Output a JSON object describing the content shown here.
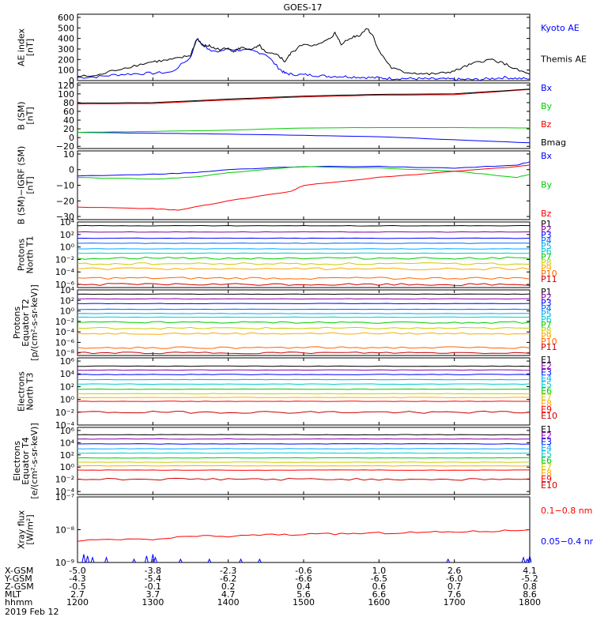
{
  "title": "GOES-17",
  "chart_data": [
    {
      "type": "line",
      "id": "ae",
      "ylabel": [
        "AE index",
        "[nT]"
      ],
      "yticks": [
        "600",
        "500",
        "400",
        "300",
        "200",
        "100",
        "0"
      ],
      "ylim": [
        0,
        630
      ],
      "series": [
        {
          "name": "Kyoto AE",
          "color": "#0000ff",
          "x": [
            1200,
            1215,
            1230,
            1245,
            1300,
            1315,
            1330,
            1335,
            1340,
            1345,
            1350,
            1400,
            1410,
            1420,
            1430,
            1440,
            1445,
            1450,
            1500,
            1510,
            1520,
            1530,
            1540,
            1550,
            1600,
            1610,
            1620,
            1630,
            1640,
            1650,
            1700,
            1710,
            1720,
            1730,
            1740,
            1750,
            1800
          ],
          "y": [
            30,
            35,
            55,
            65,
            70,
            80,
            220,
            400,
            330,
            300,
            270,
            300,
            290,
            280,
            250,
            120,
            70,
            60,
            55,
            50,
            40,
            40,
            35,
            30,
            25,
            20,
            20,
            18,
            15,
            15,
            12,
            10,
            10,
            20,
            30,
            20,
            15
          ]
        },
        {
          "name": "Themis AE",
          "color": "#000000",
          "x": [
            1200,
            1215,
            1230,
            1245,
            1300,
            1310,
            1320,
            1330,
            1335,
            1340,
            1345,
            1350,
            1400,
            1405,
            1410,
            1420,
            1425,
            1430,
            1440,
            1445,
            1450,
            1500,
            1510,
            1520,
            1525,
            1530,
            1540,
            1545,
            1550,
            1555,
            1600,
            1610,
            1620,
            1630,
            1640,
            1650,
            1700,
            1710,
            1720,
            1730,
            1740,
            1750,
            1800
          ],
          "y": [
            40,
            45,
            100,
            140,
            180,
            190,
            210,
            240,
            400,
            330,
            330,
            300,
            300,
            280,
            310,
            300,
            330,
            260,
            240,
            180,
            260,
            350,
            330,
            390,
            450,
            350,
            420,
            430,
            500,
            430,
            280,
            120,
            80,
            70,
            60,
            70,
            90,
            140,
            180,
            200,
            160,
            100,
            60
          ]
        }
      ]
    },
    {
      "type": "line",
      "id": "bsm",
      "ylabel": [
        "B (SM)",
        "[nT]"
      ],
      "yticks": [
        "120",
        "100",
        "80",
        "60",
        "40",
        "20",
        "0",
        "−20"
      ],
      "ylim": [
        -25,
        125
      ],
      "series": [
        {
          "name": "Bx",
          "color": "#0000ff",
          "x": [
            1200,
            1300,
            1400,
            1500,
            1600,
            1700,
            1800
          ],
          "y": [
            12,
            10,
            8,
            5,
            2,
            -5,
            -12
          ]
        },
        {
          "name": "By",
          "color": "#00cc00",
          "x": [
            1200,
            1300,
            1400,
            1500,
            1600,
            1700,
            1800
          ],
          "y": [
            12,
            14,
            17,
            22,
            23,
            23,
            22
          ]
        },
        {
          "name": "Bz",
          "color": "#ff0000",
          "x": [
            1200,
            1300,
            1400,
            1500,
            1600,
            1700,
            1800
          ],
          "y": [
            77,
            78,
            86,
            93,
            97,
            98,
            110
          ]
        },
        {
          "name": "Bmag",
          "color": "#000000",
          "x": [
            1200,
            1300,
            1400,
            1500,
            1600,
            1700,
            1800
          ],
          "y": [
            79,
            80,
            88,
            95,
            99,
            100,
            111
          ]
        }
      ]
    },
    {
      "type": "line",
      "id": "digrf",
      "ylabel": [
        "B (SM)−IGRF (SM)",
        "[nT]"
      ],
      "yticks": [
        "10",
        "0",
        "−10",
        "−20",
        "−30"
      ],
      "ylim": [
        -32,
        12
      ],
      "series": [
        {
          "name": "Bx",
          "color": "#0000ff",
          "x": [
            1200,
            1300,
            1330,
            1400,
            1500,
            1600,
            1700,
            1750,
            1800
          ],
          "y": [
            -4,
            -3,
            -2,
            0,
            2,
            2,
            1,
            3,
            5
          ]
        },
        {
          "name": "By",
          "color": "#00cc00",
          "x": [
            1200,
            1300,
            1330,
            1400,
            1500,
            1600,
            1700,
            1750,
            1800
          ],
          "y": [
            -5,
            -6,
            -5,
            -2,
            2,
            1,
            -1,
            -5,
            -3
          ]
        },
        {
          "name": "Bz",
          "color": "#ff0000",
          "x": [
            1200,
            1300,
            1320,
            1400,
            1450,
            1500,
            1600,
            1700,
            1750,
            1800
          ],
          "y": [
            -24,
            -25,
            -26,
            -20,
            -14,
            -10,
            -5,
            -1,
            2,
            3
          ]
        }
      ]
    },
    {
      "type": "line",
      "id": "p_north",
      "ylabel": [
        "Protons",
        "North T1"
      ],
      "yticks": [
        "10⁴",
        "10²",
        "10⁰",
        "10⁻²",
        "10⁻⁴",
        "10⁻⁶"
      ],
      "ylim_log": [
        -6.5,
        4
      ],
      "series": [
        {
          "name": "P1",
          "color": "#000000",
          "level": 3.4
        },
        {
          "name": "P2",
          "color": "#8800aa",
          "level": 2.4
        },
        {
          "name": "P3",
          "color": "#0000ff",
          "level": 1.4
        },
        {
          "name": "P4",
          "color": "#0066ff",
          "level": 0.6
        },
        {
          "name": "P5",
          "color": "#00aaff",
          "level": -0.3
        },
        {
          "name": "P6",
          "color": "#00cccc",
          "level": -1.0
        },
        {
          "name": "P7",
          "color": "#00cc00",
          "level": -1.8
        },
        {
          "name": "P8",
          "color": "#cccc00",
          "level": -2.7
        },
        {
          "name": "P9",
          "color": "#ffaa00",
          "level": -3.5
        },
        {
          "name": "P10",
          "color": "#ff6600",
          "level": -5.0
        },
        {
          "name": "P11",
          "color": "#cc0000",
          "level": -6.0
        }
      ]
    },
    {
      "type": "line",
      "id": "p_eq",
      "ylabel": [
        "Protons",
        "Equator T2",
        "[p/(cm²-s-sr-keV)]"
      ],
      "yticks": [
        "10⁴",
        "10²",
        "10⁰",
        "10⁻²",
        "10⁻⁴",
        "10⁻⁶",
        "10⁻⁸"
      ],
      "ylim_log": [
        -8.5,
        4
      ],
      "series": [
        {
          "name": "P1",
          "color": "#000000",
          "level": 3.2
        },
        {
          "name": "P2",
          "color": "#8800aa",
          "level": 2.3
        },
        {
          "name": "P3",
          "color": "#0000ff",
          "level": 1.4
        },
        {
          "name": "P4",
          "color": "#0066ff",
          "level": 0.3
        },
        {
          "name": "P5",
          "color": "#00aaff",
          "level": -0.5
        },
        {
          "name": "P6",
          "color": "#00cccc",
          "level": -1.2
        },
        {
          "name": "P7",
          "color": "#00cc00",
          "level": -2.2
        },
        {
          "name": "P8",
          "color": "#cccc00",
          "level": -3.3
        },
        {
          "name": "P9",
          "color": "#ffaa00",
          "level": -4.3
        },
        {
          "name": "P10",
          "color": "#ff6600",
          "level": -7.0
        },
        {
          "name": "P11",
          "color": "#cc0000",
          "level": -8.0
        }
      ]
    },
    {
      "type": "line",
      "id": "e_north",
      "ylabel": [
        "Electrons",
        "North T3"
      ],
      "yticks": [
        "10⁶",
        "10⁴",
        "10²",
        "10⁰",
        "10⁻²",
        "10⁻⁴"
      ],
      "ylim_log": [
        -4,
        6.5
      ],
      "series": [
        {
          "name": "E1",
          "color": "#000000",
          "level": 5.2
        },
        {
          "name": "E2",
          "color": "#8800aa",
          "level": 4.6
        },
        {
          "name": "E3",
          "color": "#0000ff",
          "level": 3.9
        },
        {
          "name": "E4",
          "color": "#00aaff",
          "level": 3.1
        },
        {
          "name": "E5",
          "color": "#00cccc",
          "level": 2.4
        },
        {
          "name": "E6",
          "color": "#00cc00",
          "level": 1.6
        },
        {
          "name": "E7",
          "color": "#cccc00",
          "level": 0.9
        },
        {
          "name": "E8",
          "color": "#ffaa00",
          "level": 0.3
        },
        {
          "name": "E9",
          "color": "#ff0000",
          "level": -0.3
        },
        {
          "name": "E10",
          "color": "#cc0000",
          "level": -2.0
        }
      ]
    },
    {
      "type": "line",
      "id": "e_eq",
      "ylabel": [
        "Electrons",
        "Equator T4",
        "[e/(cm²-s-sr-keV)]"
      ],
      "yticks": [
        "10⁶",
        "10⁴",
        "10²",
        "10⁰",
        "10⁻²",
        "10⁻⁴"
      ],
      "ylim_log": [
        -4.5,
        6.5
      ],
      "series": [
        {
          "name": "E1",
          "color": "#000000",
          "level": 5.3
        },
        {
          "name": "E2",
          "color": "#8800aa",
          "level": 4.6
        },
        {
          "name": "E3",
          "color": "#0000ff",
          "level": 3.8
        },
        {
          "name": "E4",
          "color": "#00aaff",
          "level": 3.0
        },
        {
          "name": "E5",
          "color": "#00cccc",
          "level": 2.3
        },
        {
          "name": "E6",
          "color": "#00cc00",
          "level": 1.5
        },
        {
          "name": "E7",
          "color": "#cccc00",
          "level": 0.8
        },
        {
          "name": "E8",
          "color": "#ffaa00",
          "level": 0.2
        },
        {
          "name": "E9",
          "color": "#ff0000",
          "level": -0.5
        },
        {
          "name": "E10",
          "color": "#cc0000",
          "level": -2.0
        }
      ]
    },
    {
      "type": "line",
      "id": "xray",
      "ylabel": [
        "Xray flux",
        "[W/m²]"
      ],
      "yticks": [
        "10⁻⁷",
        "10⁻⁸",
        "10⁻⁹"
      ],
      "ylim_log": [
        -9,
        -7
      ],
      "series": [
        {
          "name": "0.1−0.8 nm",
          "color": "#ff0000",
          "x": [
            1200,
            1230,
            1300,
            1330,
            1400,
            1430,
            1500,
            1530,
            1600,
            1630,
            1700,
            1730,
            1800
          ],
          "y": [
            -8.35,
            -8.3,
            -8.3,
            -8.2,
            -8.2,
            -8.15,
            -8.15,
            -8.12,
            -8.1,
            -8.08,
            -8.06,
            -8.04,
            -8.0
          ]
        },
        {
          "name": "0.05−0.4 nm",
          "color": "#0000ff",
          "spikes": [
            [
              1205,
              -8.75
            ],
            [
              1208,
              -8.8
            ],
            [
              1212,
              -8.85
            ],
            [
              1223,
              -8.85
            ],
            [
              1245,
              -8.9
            ],
            [
              1255,
              -8.8
            ],
            [
              1300,
              -8.75
            ],
            [
              1302,
              -8.85
            ],
            [
              1322,
              -8.9
            ],
            [
              1345,
              -8.9
            ],
            [
              1410,
              -8.9
            ],
            [
              1425,
              -8.9
            ],
            [
              1655,
              -8.9
            ],
            [
              1755,
              -8.85
            ],
            [
              1758,
              -8.9
            ],
            [
              1800,
              -8.8
            ]
          ]
        }
      ]
    }
  ],
  "xaxis": {
    "ticks": [
      1200,
      1300,
      1400,
      1500,
      1600,
      1700,
      1800
    ],
    "row_labels": [
      "X-GSM",
      "Y-GSM",
      "Z-GSM",
      "MLT",
      "hhmm"
    ],
    "rows": [
      [
        "-5.0",
        "-3.8",
        "-2.3",
        "-0.6",
        "1.0",
        "2.6",
        "4.1"
      ],
      [
        "-4.3",
        "-5.4",
        "-6.2",
        "-6.6",
        "-6.5",
        "-6.0",
        "-5.2"
      ],
      [
        "-0.5",
        "-0.1",
        "0.2",
        "0.4",
        "0.6",
        "0.7",
        "0.8"
      ],
      [
        "2.7",
        "3.7",
        "4.7",
        "5.6",
        "6.6",
        "7.6",
        "8.6"
      ],
      [
        "1200",
        "1300",
        "1400",
        "1500",
        "1600",
        "1700",
        "1800"
      ]
    ],
    "date": "2019 Feb 12"
  }
}
